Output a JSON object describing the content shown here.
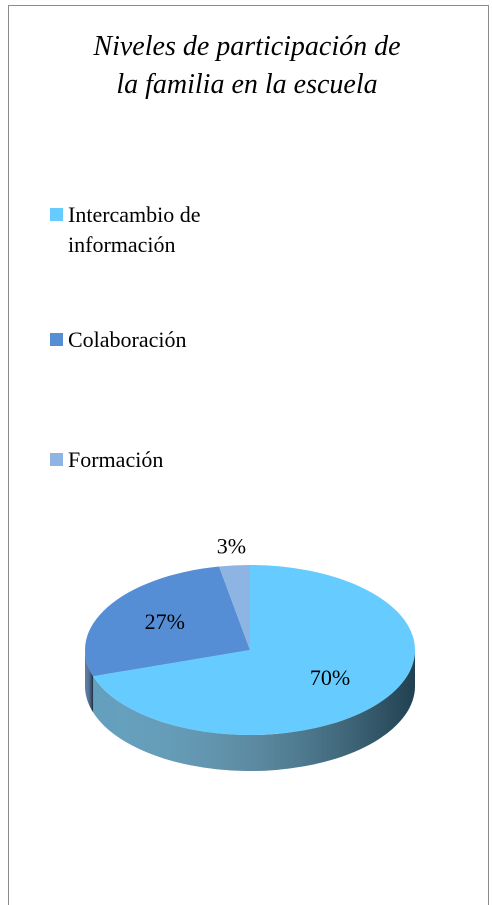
{
  "chart_data": {
    "type": "pie",
    "title": "Niveles de participación de la familia en la escuela",
    "categories": [
      "Intercambio de información",
      "Colaboración",
      "Formación"
    ],
    "values": [
      70,
      27,
      3
    ],
    "value_labels": [
      "70%",
      "27%",
      "3%"
    ],
    "colors": [
      "#66ccff",
      "#558ed5",
      "#8eb4e3"
    ],
    "legend": "left"
  }
}
